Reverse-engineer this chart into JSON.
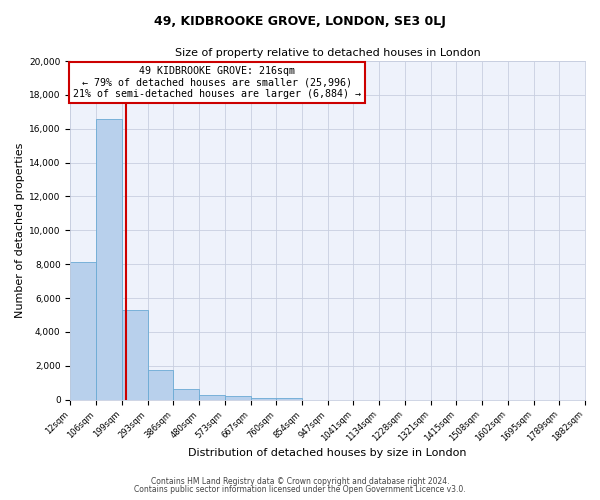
{
  "title": "49, KIDBROOKE GROVE, LONDON, SE3 0LJ",
  "subtitle": "Size of property relative to detached houses in London",
  "xlabel": "Distribution of detached houses by size in London",
  "ylabel": "Number of detached properties",
  "bar_values": [
    8100,
    16600,
    5300,
    1750,
    650,
    300,
    200,
    100,
    100,
    0,
    0,
    0,
    0,
    0,
    0,
    0,
    0,
    0,
    0,
    0
  ],
  "bin_labels": [
    "12sqm",
    "106sqm",
    "199sqm",
    "293sqm",
    "386sqm",
    "480sqm",
    "573sqm",
    "667sqm",
    "760sqm",
    "854sqm",
    "947sqm",
    "1041sqm",
    "1134sqm",
    "1228sqm",
    "1321sqm",
    "1415sqm",
    "1508sqm",
    "1602sqm",
    "1695sqm",
    "1789sqm",
    "1882sqm"
  ],
  "bar_color": "#b8d0ec",
  "bar_edge_color": "#6aaad4",
  "vline_bin": 2.18,
  "vline_color": "#cc0000",
  "annotation_text": "49 KIDBROOKE GROVE: 216sqm\n← 79% of detached houses are smaller (25,996)\n21% of semi-detached houses are larger (6,884) →",
  "box_facecolor": "white",
  "box_edgecolor": "#cc0000",
  "ylim": [
    0,
    20000
  ],
  "yticks": [
    0,
    2000,
    4000,
    6000,
    8000,
    10000,
    12000,
    14000,
    16000,
    18000,
    20000
  ],
  "num_bins": 20,
  "footnote1": "Contains HM Land Registry data © Crown copyright and database right 2024.",
  "footnote2": "Contains public sector information licensed under the Open Government Licence v3.0.",
  "bg_color": "#eef2fb",
  "grid_color": "#c8cfe0",
  "title_fontsize": 9,
  "subtitle_fontsize": 8,
  "tick_fontsize": 6,
  "xlabel_fontsize": 8,
  "ylabel_fontsize": 8
}
